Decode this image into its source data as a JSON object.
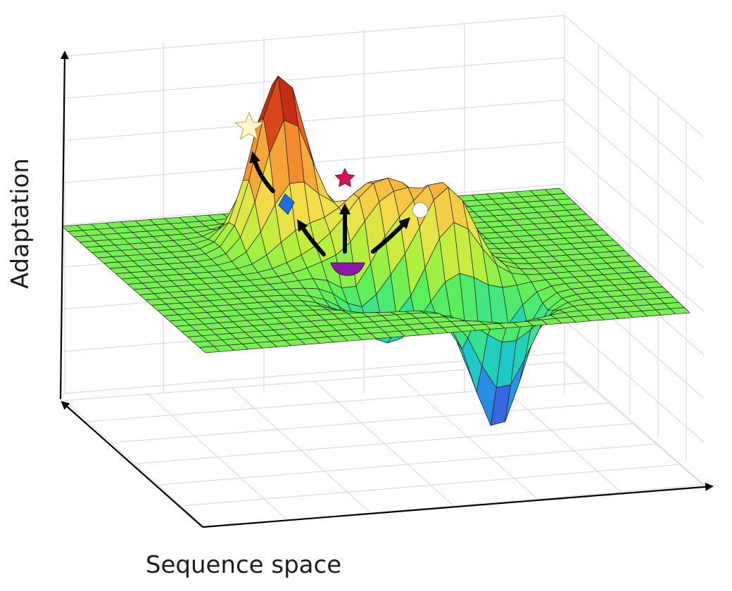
{
  "labels": {
    "y_axis": "Adaptation",
    "x_axis": "Sequence space"
  },
  "colormap": [
    "#2b1f8a",
    "#3b5fe0",
    "#19b6e6",
    "#22d8b0",
    "#5cf05a",
    "#b8f03a",
    "#f2e24a",
    "#f7b03c",
    "#ee6a22",
    "#c42a10",
    "#8c0f0a"
  ],
  "markers": [
    {
      "shape": "star",
      "color": "#fff6c8",
      "meaning": "global-peak"
    },
    {
      "shape": "star",
      "color": "#d4145a",
      "meaning": "central-peak"
    },
    {
      "shape": "hexagon",
      "color": "#ffffff",
      "meaning": "right-peak"
    },
    {
      "shape": "diamond",
      "color": "#1f6fe0",
      "meaning": "ridge-point"
    },
    {
      "shape": "semicircle",
      "color": "#8a1aa8",
      "meaning": "start-point"
    }
  ]
}
